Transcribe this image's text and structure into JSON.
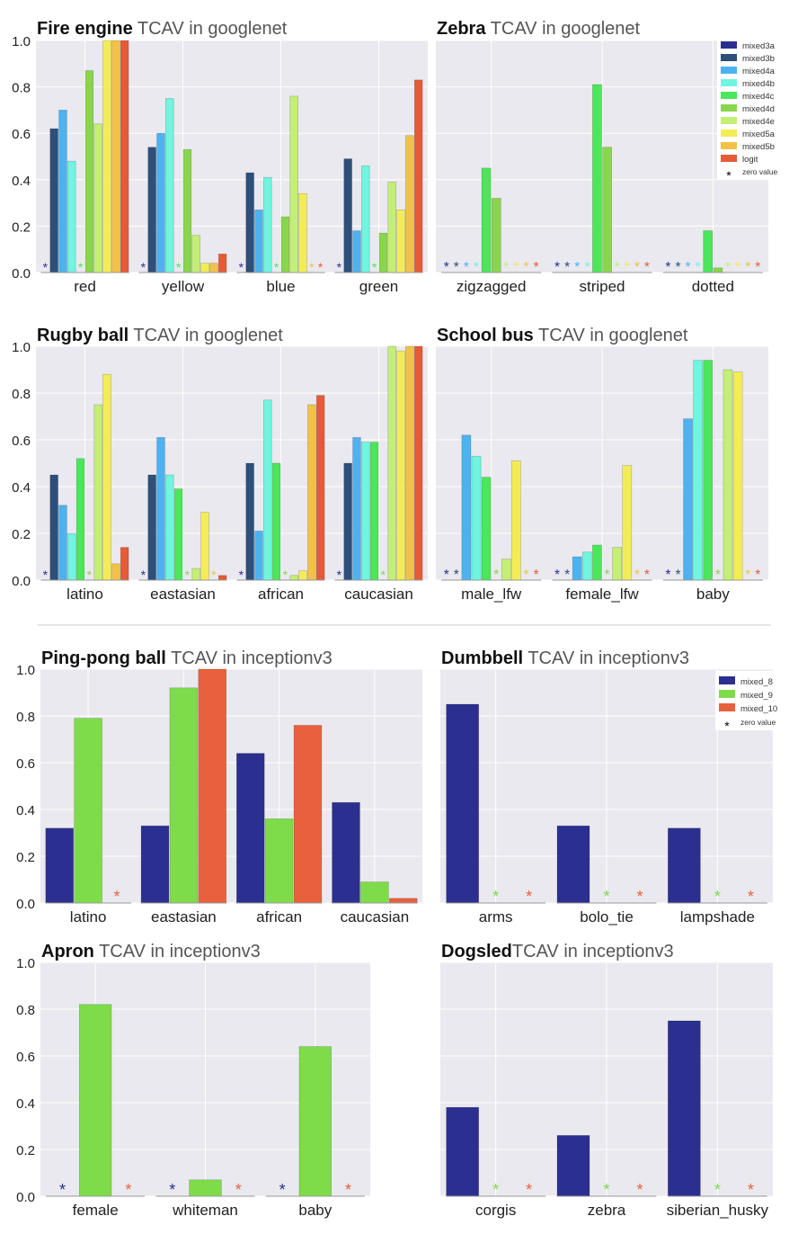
{
  "colors": {
    "mixed3a": "#2b2f8f",
    "mixed3b": "#2d4f7a",
    "mixed4a": "#4db2f0",
    "mixed4b": "#6ff5e0",
    "mixed4c": "#4be65a",
    "mixed4d": "#89d64e",
    "mixed4e": "#c4ef75",
    "mixed5a": "#f4ec56",
    "mixed5b": "#f2c247",
    "logit": "#e55b37",
    "mixed_8": "#2b2f8f",
    "mixed_9": "#7edc4a",
    "mixed_10": "#e8613c",
    "plot_bg": "#e9e9ef",
    "grid": "#ffffff",
    "divider": "#cccccc"
  },
  "legend_googlenet": {
    "entries": [
      "mixed3a",
      "mixed3b",
      "mixed4a",
      "mixed4b",
      "mixed4c",
      "mixed4d",
      "mixed4e",
      "mixed5a",
      "mixed5b",
      "logit"
    ],
    "zero_label": "zero value"
  },
  "legend_inception": {
    "entries": [
      "mixed_8",
      "mixed_9",
      "mixed_10"
    ],
    "zero_label": "zero value"
  },
  "chart_data": [
    {
      "type": "bar",
      "title_bold": "Fire engine",
      "title_rest": " TCAV in googlenet",
      "ylim": [
        0,
        1.0
      ],
      "yticks": [
        "0.0",
        "0.2",
        "0.4",
        "0.6",
        "0.8",
        "1.0"
      ],
      "categories": [
        "red",
        "yellow",
        "blue",
        "green"
      ],
      "series": [
        {
          "name": "mixed3a",
          "values": [
            0,
            0,
            0,
            0
          ]
        },
        {
          "name": "mixed3b",
          "values": [
            0.62,
            0.54,
            0.43,
            0.49
          ]
        },
        {
          "name": "mixed4a",
          "values": [
            0.7,
            0.6,
            0.27,
            0.18
          ]
        },
        {
          "name": "mixed4b",
          "values": [
            0.48,
            0.75,
            0.41,
            0.46
          ]
        },
        {
          "name": "mixed4c",
          "values": [
            0,
            0,
            0,
            0
          ]
        },
        {
          "name": "mixed4d",
          "values": [
            0.87,
            0.53,
            0.24,
            0.17
          ]
        },
        {
          "name": "mixed4e",
          "values": [
            0.64,
            0.16,
            0.76,
            0.39
          ]
        },
        {
          "name": "mixed5a",
          "values": [
            1.0,
            0.04,
            0.34,
            0.27
          ]
        },
        {
          "name": "mixed5b",
          "values": [
            1.0,
            0.04,
            0,
            0.59
          ]
        },
        {
          "name": "logit",
          "values": [
            1.0,
            0.08,
            0,
            0.83
          ]
        }
      ],
      "show_legend": false
    },
    {
      "type": "bar",
      "title_bold": "Zebra",
      "title_rest": " TCAV in googlenet",
      "ylim": [
        0,
        1.0
      ],
      "yticks": [],
      "categories": [
        "zigzagged",
        "striped",
        "dotted"
      ],
      "series": [
        {
          "name": "mixed3a",
          "values": [
            0,
            0,
            0
          ]
        },
        {
          "name": "mixed3b",
          "values": [
            0,
            0,
            0
          ]
        },
        {
          "name": "mixed4a",
          "values": [
            0,
            0,
            0
          ]
        },
        {
          "name": "mixed4b",
          "values": [
            0,
            0,
            0
          ]
        },
        {
          "name": "mixed4c",
          "values": [
            0.45,
            0.81,
            0.18
          ]
        },
        {
          "name": "mixed4d",
          "values": [
            0.32,
            0.54,
            0.02
          ]
        },
        {
          "name": "mixed4e",
          "values": [
            0,
            0,
            0
          ]
        },
        {
          "name": "mixed5a",
          "values": [
            0,
            0,
            0
          ]
        },
        {
          "name": "mixed5b",
          "values": [
            0,
            0,
            0
          ]
        },
        {
          "name": "logit",
          "values": [
            0,
            0,
            0
          ]
        }
      ],
      "show_legend": true
    },
    {
      "type": "bar",
      "title_bold": "Rugby ball",
      "title_rest": " TCAV in googlenet",
      "ylim": [
        0,
        1.0
      ],
      "yticks": [
        "0.0",
        "0.2",
        "0.4",
        "0.6",
        "0.8",
        "1.0"
      ],
      "categories": [
        "latino",
        "eastasian",
        "african",
        "caucasian"
      ],
      "series": [
        {
          "name": "mixed3a",
          "values": [
            0,
            0,
            0,
            0
          ]
        },
        {
          "name": "mixed3b",
          "values": [
            0.45,
            0.45,
            0.5,
            0.5
          ]
        },
        {
          "name": "mixed4a",
          "values": [
            0.32,
            0.61,
            0.21,
            0.61
          ]
        },
        {
          "name": "mixed4b",
          "values": [
            0.2,
            0.45,
            0.77,
            0.59
          ]
        },
        {
          "name": "mixed4c",
          "values": [
            0.52,
            0.39,
            0.5,
            0.59
          ]
        },
        {
          "name": "mixed4d",
          "values": [
            0,
            0,
            0,
            0
          ]
        },
        {
          "name": "mixed4e",
          "values": [
            0.75,
            0.05,
            0.02,
            1.0
          ]
        },
        {
          "name": "mixed5a",
          "values": [
            0.88,
            0.29,
            0.04,
            0.98
          ]
        },
        {
          "name": "mixed5b",
          "values": [
            0.07,
            0,
            0.75,
            1.0
          ]
        },
        {
          "name": "logit",
          "values": [
            0.14,
            0.02,
            0.79,
            1.0
          ]
        }
      ],
      "show_legend": false
    },
    {
      "type": "bar",
      "title_bold": "School bus",
      "title_rest": " TCAV in googlenet",
      "ylim": [
        0,
        1.0
      ],
      "yticks": [],
      "categories": [
        "male_lfw",
        "female_lfw",
        "baby"
      ],
      "series": [
        {
          "name": "mixed3a",
          "values": [
            0,
            0,
            0
          ]
        },
        {
          "name": "mixed3b",
          "values": [
            0,
            0,
            0
          ]
        },
        {
          "name": "mixed4a",
          "values": [
            0.62,
            0.1,
            0.69
          ]
        },
        {
          "name": "mixed4b",
          "values": [
            0.53,
            0.12,
            0.94
          ]
        },
        {
          "name": "mixed4c",
          "values": [
            0.44,
            0.15,
            0.94
          ]
        },
        {
          "name": "mixed4d",
          "values": [
            0,
            0,
            0
          ]
        },
        {
          "name": "mixed4e",
          "values": [
            0.09,
            0.14,
            0.9
          ]
        },
        {
          "name": "mixed5a",
          "values": [
            0.51,
            0.49,
            0.89
          ]
        },
        {
          "name": "mixed5b",
          "values": [
            0,
            0,
            0
          ]
        },
        {
          "name": "logit",
          "values": [
            0,
            0,
            0
          ]
        }
      ],
      "show_legend": false
    },
    {
      "type": "bar",
      "title_bold": "Ping-pong ball",
      "title_rest": " TCAV in inceptionv3",
      "ylim": [
        0,
        1.0
      ],
      "yticks": [
        "0.0",
        "0.2",
        "0.4",
        "0.6",
        "0.8",
        "1.0"
      ],
      "categories": [
        "latino",
        "eastasian",
        "african",
        "caucasian"
      ],
      "series": [
        {
          "name": "mixed_8",
          "values": [
            0.32,
            0.33,
            0.64,
            0.43
          ]
        },
        {
          "name": "mixed_9",
          "values": [
            0.79,
            0.92,
            0.36,
            0.09
          ]
        },
        {
          "name": "mixed_10",
          "values": [
            0,
            1.0,
            0.76,
            0.02
          ]
        }
      ],
      "show_legend": false
    },
    {
      "type": "bar",
      "title_bold": "Dumbbell",
      "title_rest": " TCAV in inceptionv3",
      "ylim": [
        0,
        1.0
      ],
      "yticks": [],
      "categories": [
        "arms",
        "bolo_tie",
        "lampshade"
      ],
      "series": [
        {
          "name": "mixed_8",
          "values": [
            0.85,
            0.33,
            0.32
          ]
        },
        {
          "name": "mixed_9",
          "values": [
            0,
            0,
            0
          ]
        },
        {
          "name": "mixed_10",
          "values": [
            0,
            0,
            0
          ]
        }
      ],
      "show_legend": true
    },
    {
      "type": "bar",
      "title_bold": "Apron",
      "title_rest": " TCAV in inceptionv3",
      "ylim": [
        0,
        1.0
      ],
      "yticks": [
        "0.0",
        "0.2",
        "0.4",
        "0.6",
        "0.8",
        "1.0"
      ],
      "categories": [
        "female",
        "whiteman",
        "baby"
      ],
      "series": [
        {
          "name": "mixed_8",
          "values": [
            0,
            0,
            0
          ]
        },
        {
          "name": "mixed_9",
          "values": [
            0.82,
            0.07,
            0.64
          ]
        },
        {
          "name": "mixed_10",
          "values": [
            0,
            0,
            0
          ]
        }
      ],
      "show_legend": false
    },
    {
      "type": "bar",
      "title_bold": "Dogsled",
      "title_rest": "TCAV in inceptionv3",
      "ylim": [
        0,
        1.0
      ],
      "yticks": [],
      "categories": [
        "corgis",
        "zebra",
        "siberian_husky"
      ],
      "series": [
        {
          "name": "mixed_8",
          "values": [
            0.38,
            0.26,
            0.75
          ]
        },
        {
          "name": "mixed_9",
          "values": [
            0,
            0,
            0
          ]
        },
        {
          "name": "mixed_10",
          "values": [
            0,
            0,
            0
          ]
        }
      ],
      "show_legend": false
    }
  ]
}
